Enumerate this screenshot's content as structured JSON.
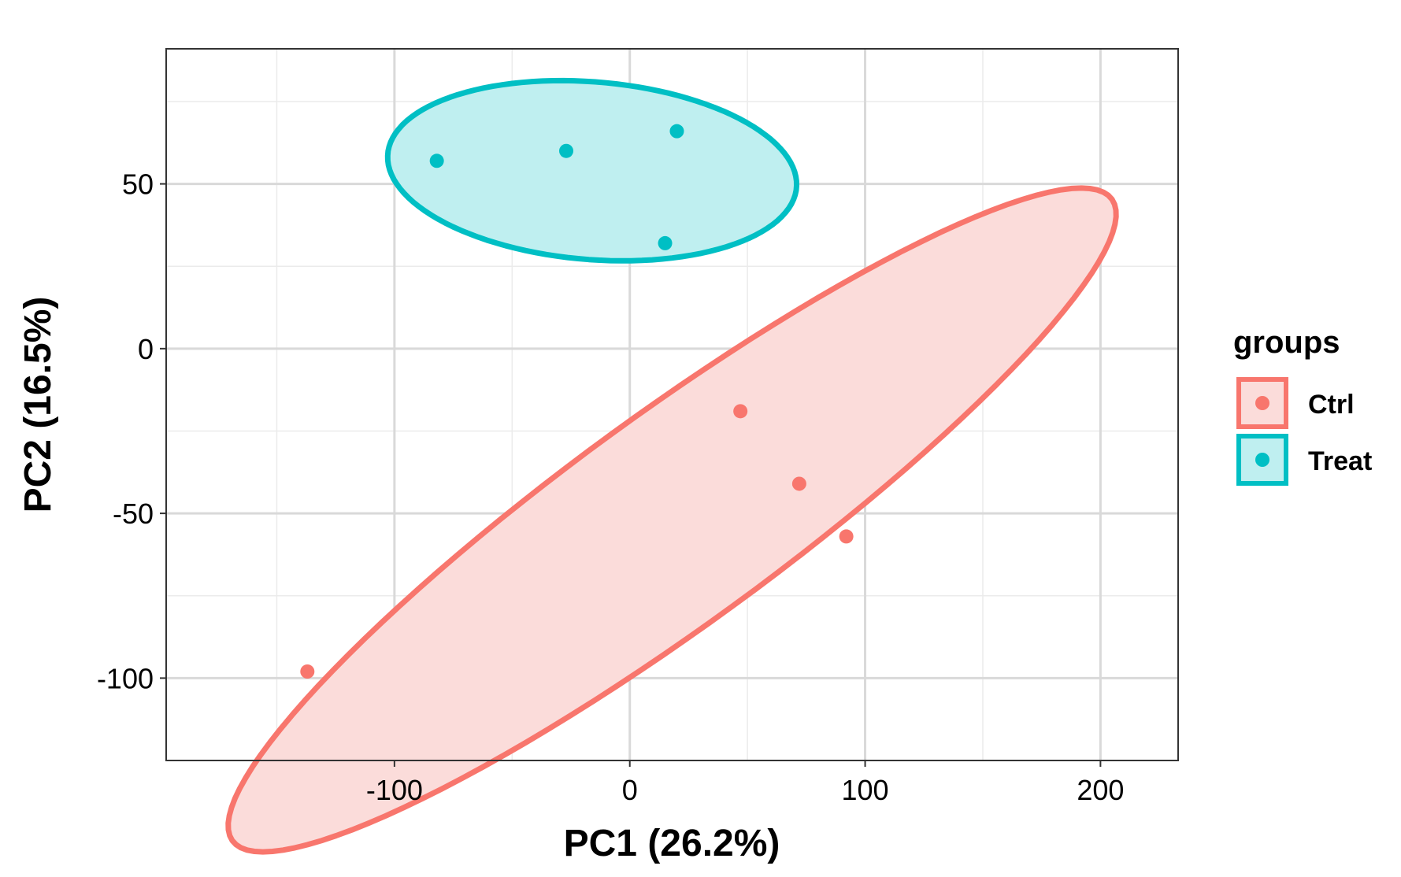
{
  "chart_data": {
    "type": "scatter",
    "title": "",
    "xlabel": "PC1 (26.2%)",
    "ylabel": "PC2 (16.5%)",
    "xlim": [
      -197,
      233
    ],
    "ylim": [
      -125,
      91
    ],
    "x_ticks": [
      -100,
      0,
      100,
      200
    ],
    "y_ticks": [
      -100,
      -50,
      0,
      50
    ],
    "x_tick_labels": [
      "-100",
      "0",
      "100",
      "200"
    ],
    "y_tick_labels": [
      "-100",
      "-50",
      "0",
      "50"
    ],
    "grid": true,
    "legend": {
      "title": "groups",
      "position": "right"
    },
    "series": [
      {
        "name": "Ctrl",
        "color": "#F8766D",
        "fill": "#FBDCDA",
        "points": [
          {
            "x": -137,
            "y": -98
          },
          {
            "x": 47,
            "y": -19
          },
          {
            "x": 72,
            "y": -41
          },
          {
            "x": 92,
            "y": -57
          }
        ],
        "ellipse": {
          "cx": 18,
          "cy": -52,
          "rx": 211,
          "ry": 35,
          "angle_deg": 27
        }
      },
      {
        "name": "Treat",
        "color": "#00BFC4",
        "fill": "#BFEFF0",
        "points": [
          {
            "x": -82,
            "y": 57
          },
          {
            "x": -27,
            "y": 60
          },
          {
            "x": 20,
            "y": 66
          },
          {
            "x": 15,
            "y": 32
          }
        ],
        "ellipse": {
          "cx": -16,
          "cy": 54,
          "rx": 87,
          "ry": 27,
          "angle_deg": -3
        }
      }
    ]
  }
}
